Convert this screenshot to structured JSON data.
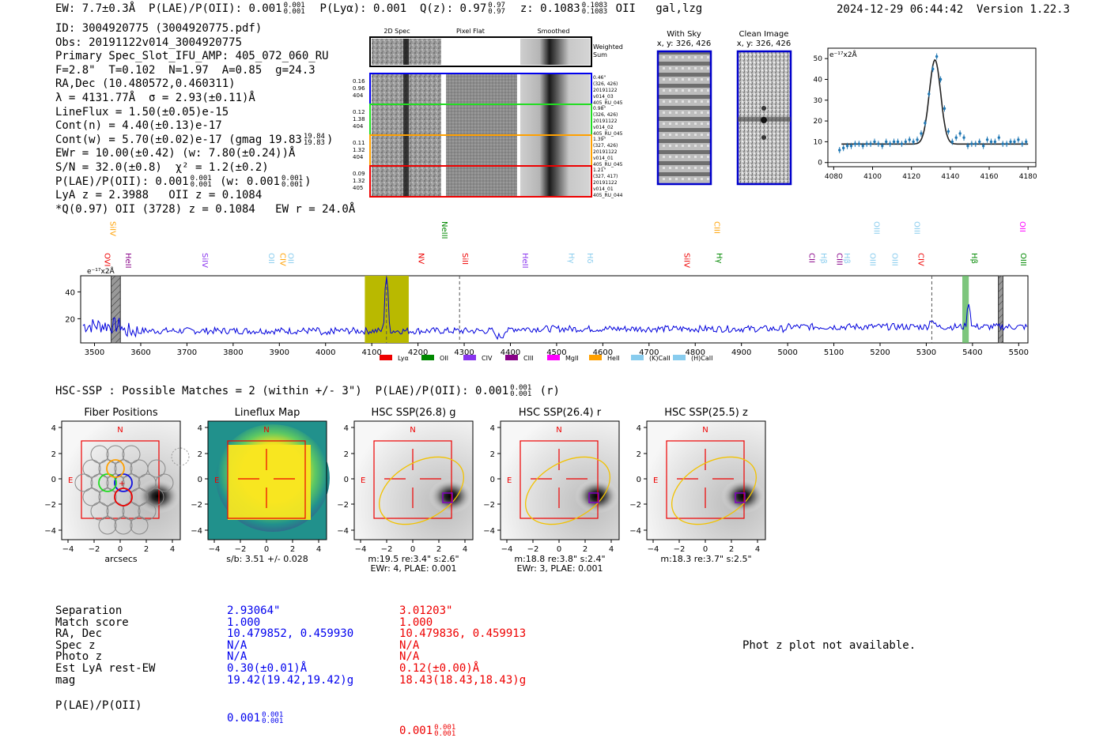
{
  "header": {
    "ew": "EW: 7.7±0.3Å",
    "plae_label": "P(LAE)/P(OII): 0.001",
    "plae_sup": "0.001",
    "plae_sub": "0.001",
    "plya": "P(Lyα): 0.001",
    "qz_label": "Q(z): 0.97",
    "qz_sup": "0.97",
    "qz_sub": "0.97",
    "z_label": "z: 0.1083",
    "z_sup": "0.1083",
    "z_sub": "0.1083",
    "z_line": "OII",
    "tags": "gal,lzg",
    "timestamp": "2024-12-29 06:44:42",
    "version": "Version 1.22.3"
  },
  "info": {
    "id": "ID: 3004920775 (3004920775.pdf)",
    "obs": "Obs: 20191122v014_3004920775",
    "primary": "Primary Spec_Slot_IFU_AMP: 405_072_060_RU",
    "fwhm": "F=2.8\"  T=0.102  N=1.97  A=0.85  g=24.3",
    "radec": "RA,Dec (10.480572,0.460311)",
    "lambda": "λ = 4131.77Å  σ = 2.93(±0.11)Å",
    "lineflux": "LineFlux = 1.50(±0.05)e-15",
    "contn": "Cont(n) = 4.40(±0.13)e-17",
    "contw": "Cont(w) = 5.70(±0.02)e-17 (gmag 19.83",
    "contw_sup": "19.84",
    "contw_sub": "19.83",
    "contw_close": ")",
    "ewr": "EWr = 10.00(±0.42) (w: 7.80(±0.24))Å",
    "sn": "S/N = 32.0(±0.8)  χ² = 1.2(±0.2)",
    "plae_a": "P(LAE)/P(OII): 0.001",
    "plae_a_sup": "0.001",
    "plae_a_sub": "0.001",
    "plae_w": " (w: 0.001",
    "plae_w_sup": "0.001",
    "plae_w_sub": "0.001",
    "plae_w_close": ")",
    "lya": "LyA z = 2.3988   OII z = 0.1084",
    "qline": "*Q(0.97) OII (3728) z = 0.1084   EW r = 24.0Å"
  },
  "cutouts": {
    "col_labels": [
      "2D Spec",
      "Pixel Flat",
      "Smoothed"
    ],
    "weighted_label": [
      "Weighted",
      "Sum"
    ],
    "rows": [
      {
        "color": "#0000ee",
        "left": [
          "0.16",
          "0.96",
          "404"
        ],
        "right": [
          "0.46\"",
          "(326, 426)",
          "20191122",
          "v014_03",
          "405_RU_045"
        ]
      },
      {
        "color": "#22dd22",
        "left": [
          "0.12",
          "1.38",
          "404"
        ],
        "right": [
          "0.98\"",
          "(326, 426)",
          "20191122",
          "v014_02",
          "405_RU_045"
        ]
      },
      {
        "color": "#ffa000",
        "left": [
          "0.11",
          "1.32",
          "404"
        ],
        "right": [
          "1.39\"",
          "(327, 426)",
          "20191122",
          "v014_01",
          "405_RU_045"
        ]
      },
      {
        "color": "#ee0000",
        "left": [
          "0.09",
          "1.32",
          "405"
        ],
        "right": [
          "1.21\"",
          "(327, 417)",
          "20191122",
          "v014_01",
          "405_RU_044"
        ]
      }
    ],
    "with_sky": [
      "With Sky",
      "x, y: 326, 426"
    ],
    "clean": [
      "Clean Image",
      "x, y: 326, 426"
    ]
  },
  "chart_data": [
    {
      "type": "line",
      "id": "line-fit",
      "title": "",
      "ylabel": "e⁻¹⁷x2Å",
      "xlim": [
        4077,
        4184
      ],
      "ylim": [
        -2,
        55
      ],
      "xticks": [
        4080,
        4100,
        4120,
        4140,
        4160,
        4180
      ],
      "yticks": [
        0,
        10,
        20,
        30,
        40,
        50
      ],
      "fit_model": {
        "center": 4132.1,
        "sigma": 2.93,
        "amplitude": 40.5,
        "continuum": 8.9
      },
      "points": {
        "x": [
          4083,
          4085,
          4087,
          4089,
          4091,
          4093,
          4095,
          4097,
          4099,
          4101,
          4103,
          4105,
          4107,
          4109,
          4111,
          4113,
          4115,
          4117,
          4119,
          4121,
          4123,
          4125,
          4127,
          4129,
          4131,
          4133,
          4135,
          4137,
          4139,
          4141,
          4143,
          4145,
          4147,
          4149,
          4151,
          4153,
          4155,
          4157,
          4159,
          4161,
          4163,
          4165,
          4167,
          4169,
          4171,
          4173,
          4175,
          4177,
          4179
        ],
        "y": [
          6,
          7,
          8,
          8,
          9,
          9,
          8,
          9,
          9,
          10,
          9,
          8,
          10,
          9,
          10,
          10,
          9,
          10,
          11,
          10,
          11,
          14,
          19,
          33,
          45,
          51,
          40,
          26,
          15,
          10,
          12,
          14,
          12,
          8,
          9,
          9,
          10,
          8,
          11,
          10,
          10,
          12,
          9,
          9,
          10,
          10,
          11,
          9,
          10
        ]
      }
    },
    {
      "type": "line",
      "id": "full-spectrum",
      "ylabel": "e⁻¹⁷x2Å",
      "xlim": [
        3470,
        5520
      ],
      "ylim": [
        2,
        52
      ],
      "xticks": [
        3500,
        3600,
        3700,
        3800,
        3900,
        4000,
        4100,
        4200,
        4300,
        4400,
        4500,
        4600,
        4700,
        4800,
        4900,
        5000,
        5100,
        5200,
        5300,
        5400,
        5500
      ],
      "yticks": [
        20,
        40
      ],
      "highlight": {
        "from": 4085,
        "to": 4180,
        "color": "#b9b900"
      },
      "hatched_bands": [
        {
          "from": 3536,
          "to": 3556
        },
        {
          "from": 5456,
          "to": 5466
        }
      ],
      "green_band": {
        "from": 5378,
        "to": 5392
      },
      "dashed_lines": [
        4131.8,
        4290,
        5312
      ],
      "peaks": [
        {
          "x": 4131.8,
          "height": 50,
          "width": 3
        },
        {
          "x": 5392,
          "height": 19,
          "width": 3
        },
        {
          "x": 5312,
          "height": 6,
          "width": 4
        }
      ],
      "legend": [
        {
          "label": "Lyα",
          "color": "#ee0000"
        },
        {
          "label": "OII",
          "color": "#008800"
        },
        {
          "label": "CIV",
          "color": "#8833ee"
        },
        {
          "label": "CIII",
          "color": "#880088"
        },
        {
          "label": "MgII",
          "color": "#ff00ff"
        },
        {
          "label": "HeII",
          "color": "#ffa000"
        },
        {
          "label": "(K)CaII",
          "color": "#88ccee"
        },
        {
          "label": "(H)CaII",
          "color": "#88ccee"
        }
      ],
      "line_labels": [
        {
          "text": "SiIV",
          "x": 3527,
          "row": 0,
          "color": "#ffa000"
        },
        {
          "text": "OVI",
          "x": 3515,
          "row": 1,
          "color": "#ee0000"
        },
        {
          "text": "HeII",
          "x": 3561,
          "row": 1,
          "color": "#880088"
        },
        {
          "text": "SiIV",
          "x": 3727,
          "row": 1,
          "color": "#8833ee"
        },
        {
          "text": "OII",
          "x": 3870,
          "row": 1,
          "color": "#88ccee"
        },
        {
          "text": "CIV",
          "x": 3895,
          "row": 1,
          "color": "#ffa000"
        },
        {
          "text": "OII",
          "x": 3912,
          "row": 1,
          "color": "#88ccee"
        },
        {
          "text": "NeIII",
          "x": 4245,
          "row": 0,
          "color": "#008800"
        },
        {
          "text": "NV",
          "x": 4195,
          "row": 1,
          "color": "#ee0000"
        },
        {
          "text": "SiII",
          "x": 4290,
          "row": 1,
          "color": "#ee0000"
        },
        {
          "text": "HeII",
          "x": 4420,
          "row": 1,
          "color": "#8833ee"
        },
        {
          "text": "Hγ",
          "x": 4520,
          "row": 1,
          "color": "#88ccee"
        },
        {
          "text": "Hδ",
          "x": 4560,
          "row": 1,
          "color": "#88ccee"
        },
        {
          "text": "SiIV",
          "x": 4770,
          "row": 1,
          "color": "#ee0000"
        },
        {
          "text": "CIII",
          "x": 4835,
          "row": 0,
          "color": "#ffa000"
        },
        {
          "text": "Hγ",
          "x": 4840,
          "row": 1,
          "color": "#008800"
        },
        {
          "text": "CII",
          "x": 5040,
          "row": 1,
          "color": "#880088"
        },
        {
          "text": "Hβ",
          "x": 5066,
          "row": 1,
          "color": "#88ccee"
        },
        {
          "text": "CIII",
          "x": 5100,
          "row": 1,
          "color": "#880088"
        },
        {
          "text": "Hβ",
          "x": 5116,
          "row": 1,
          "color": "#88ccee"
        },
        {
          "text": "OIII",
          "x": 5172,
          "row": 1,
          "color": "#88ccee"
        },
        {
          "text": "OIII",
          "x": 5180,
          "row": 0,
          "color": "#88ccee"
        },
        {
          "text": "OIII",
          "x": 5220,
          "row": 1,
          "color": "#88ccee"
        },
        {
          "text": "OIII",
          "x": 5268,
          "row": 0,
          "color": "#88ccee"
        },
        {
          "text": "CIV",
          "x": 5276,
          "row": 1,
          "color": "#ee0000"
        },
        {
          "text": "Hβ",
          "x": 5392,
          "row": 1,
          "color": "#008800"
        },
        {
          "text": "OII",
          "x": 5496,
          "row": 0,
          "color": "#ff00ff"
        },
        {
          "text": "OIII",
          "x": 5498,
          "row": 1,
          "color": "#008800"
        }
      ]
    }
  ],
  "hsc": {
    "title": "HSC-SSP : Possible Matches = 2 (within +/- 3\")  P(LAE)/P(OII): 0.001",
    "title_sup": "0.001",
    "title_sub": "0.001",
    "title_tail": " (r)",
    "ticks": [
      "4",
      "2",
      "0",
      "−2",
      "−4"
    ],
    "panels": [
      {
        "title": "Fiber Positions",
        "xlabel": "arcsecs",
        "caption2": ""
      },
      {
        "title": "Lineflux Map",
        "xlabel": "s/b: 3.51 +/- 0.028",
        "caption2": ""
      },
      {
        "title": "HSC SSP(26.8) g",
        "xlabel": "m:19.5  re:3.4\"  s:2.6\"",
        "caption2": "EWr: 4, PLAE: 0.001"
      },
      {
        "title": "HSC SSP(26.4) r",
        "xlabel": "m:18.8  re:3.8\"  s:2.4\"",
        "caption2": "EWr: 3, PLAE: 0.001"
      },
      {
        "title": "HSC SSP(25.5) z",
        "xlabel": "m:18.3  re:3.7\"  s:2.5\"",
        "caption2": ""
      }
    ],
    "compass_n": "N",
    "compass_e": "E"
  },
  "table": {
    "rows": [
      {
        "label": "Separation",
        "a": "2.93064\"",
        "b": "3.01203\""
      },
      {
        "label": "Match score",
        "a": "1.000",
        "b": "1.000"
      },
      {
        "label": "RA, Dec",
        "a": "10.479852, 0.459930",
        "b": "10.479836, 0.459913"
      },
      {
        "label": "Spec z",
        "a": "N/A",
        "b": "N/A"
      },
      {
        "label": "Photo z",
        "a": "N/A",
        "b": "N/A"
      },
      {
        "label": "Est LyA rest-EW",
        "a": "0.30(±0.01)Å",
        "b": "0.12(±0.00)Å"
      },
      {
        "label": "mag",
        "a": "19.42(19.42,19.42)g",
        "b": "18.43(18.43,18.43)g"
      }
    ],
    "plae_label": "P(LAE)/P(OII)",
    "plae_a": "0.001",
    "plae_a_sup": "0.001",
    "plae_a_sub": "0.001",
    "plae_b": "0.001",
    "plae_b_sup": "0.001",
    "plae_b_sub": "0.001"
  },
  "photz_message": "Phot z plot not available."
}
